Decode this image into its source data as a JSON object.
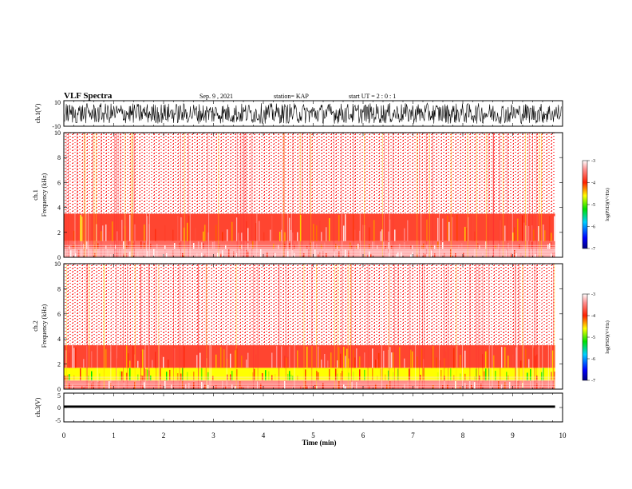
{
  "header": {
    "title": "VLF Spectra",
    "date": "Sep. 9 , 2021",
    "station": "station= KAP",
    "start": "start  UT =   2 : 0  : 1"
  },
  "colors": {
    "spectrum_background": "#ffffff",
    "spectrum_high": "#ff2020",
    "spectrum_mid": "#ffd000",
    "spectrum_low": "#20e020",
    "trace": "#000000"
  },
  "chart_data": [
    {
      "type": "line",
      "panel": "ch1-waveform",
      "ylabel": "ch.1(V)",
      "ylim": [
        -10,
        10
      ],
      "y_ticks": [
        "10",
        "-10"
      ],
      "xlim": [
        0,
        10
      ],
      "description_values": {
        "approx_amplitude_V": 8,
        "envelope_min_V": -10,
        "envelope_max_V": 10
      }
    },
    {
      "type": "heatmap",
      "panel": "ch1-spectrogram",
      "ylabel_lines": [
        "ch.1",
        "Frequency  (kHz)"
      ],
      "ylim": [
        0,
        10
      ],
      "y_ticks": [
        "0",
        "2",
        "4",
        "6",
        "8",
        "10"
      ],
      "xlim": [
        0,
        9.85
      ],
      "bands": [
        {
          "f_from": 0.0,
          "f_to": 0.7,
          "level": -3.3
        },
        {
          "f_from": 0.7,
          "f_to": 1.3,
          "level": -3.6
        },
        {
          "f_from": 1.3,
          "f_to": 3.5,
          "level": -3.8
        },
        {
          "f_from": 3.5,
          "f_to": 10.0,
          "level": -3.2
        }
      ],
      "colorbar": {
        "label": "log(PSD)(V²/Hz)",
        "range": [
          -7,
          -3
        ],
        "ticks": [
          "-3",
          "-4",
          "-5",
          "-6",
          "-7"
        ]
      }
    },
    {
      "type": "heatmap",
      "panel": "ch2-spectrogram",
      "ylabel_lines": [
        "ch.2",
        "Frequency  (kHz)"
      ],
      "ylim": [
        0,
        10
      ],
      "y_ticks": [
        "0",
        "2",
        "4",
        "6",
        "8",
        "10"
      ],
      "xlim": [
        0,
        9.85
      ],
      "bands": [
        {
          "f_from": 0.0,
          "f_to": 0.7,
          "level": -3.5
        },
        {
          "f_from": 0.7,
          "f_to": 1.7,
          "level": -4.6
        },
        {
          "f_from": 1.7,
          "f_to": 3.5,
          "level": -3.8
        },
        {
          "f_from": 3.5,
          "f_to": 10.0,
          "level": -3.2
        }
      ],
      "colorbar": {
        "label": "log(PSD)(V²/Hz)",
        "range": [
          -7,
          -3
        ],
        "ticks": [
          "-3",
          "-4",
          "-5",
          "-6",
          "-7"
        ]
      }
    },
    {
      "type": "line",
      "panel": "ch3-waveform",
      "ylabel": "ch.3(V)",
      "ylim": [
        -5,
        5
      ],
      "y_ticks": [
        "5",
        "0",
        "-5"
      ],
      "xlim": [
        0,
        9.85
      ],
      "description_values": {
        "mean_V": 0.3,
        "amplitude_V": 0.4
      }
    }
  ],
  "x_axis": {
    "label": "Time  (min)",
    "range": [
      0,
      10
    ],
    "ticks": [
      "0",
      "1",
      "2",
      "3",
      "4",
      "5",
      "6",
      "7",
      "8",
      "9",
      "10"
    ]
  }
}
